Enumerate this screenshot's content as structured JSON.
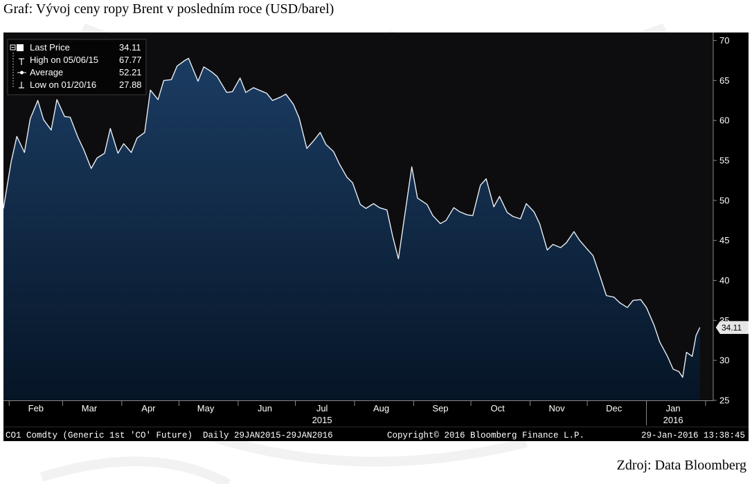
{
  "title": "Graf: Vývoj ceny ropy Brent v posledním roce (USD/barel)",
  "source": "Zdroj: Data Bloomberg",
  "chart_data": {
    "type": "area",
    "title": "",
    "xlabel": "",
    "ylabel": "",
    "ylim": [
      25,
      71
    ],
    "yticks": [
      25,
      30,
      35,
      40,
      45,
      50,
      55,
      60,
      65,
      70
    ],
    "grid": false,
    "month_labels": [
      {
        "label": "Feb",
        "date": "2015-02-15"
      },
      {
        "label": "Mar",
        "date": "2015-03-15"
      },
      {
        "label": "Apr",
        "date": "2015-04-15"
      },
      {
        "label": "May",
        "date": "2015-05-15"
      },
      {
        "label": "Jun",
        "date": "2015-06-15"
      },
      {
        "label": "Jul",
        "date": "2015-07-15"
      },
      {
        "label": "Aug",
        "date": "2015-08-15"
      },
      {
        "label": "Sep",
        "date": "2015-09-15"
      },
      {
        "label": "Oct",
        "date": "2015-10-15"
      },
      {
        "label": "Nov",
        "date": "2015-11-15"
      },
      {
        "label": "Dec",
        "date": "2015-12-15"
      },
      {
        "label": "Jan",
        "date": "2016-01-15"
      }
    ],
    "year_labels": [
      {
        "label": "2015",
        "date": "2015-07-15"
      },
      {
        "label": "2016",
        "date": "2016-01-15"
      }
    ],
    "legend": {
      "placement": "top-left",
      "items": [
        {
          "label": "Last Price",
          "value": "34.11",
          "marker": "square"
        },
        {
          "label": "High on 05/06/15",
          "value": "67.77",
          "marker": "high"
        },
        {
          "label": "Average",
          "value": "52.21",
          "marker": "average"
        },
        {
          "label": "Low on 01/20/16",
          "value": "27.88",
          "marker": "low"
        }
      ]
    },
    "last_value_label": "34.11",
    "footer_left": "CO1 Comdty (Generic 1st 'CO' Future)  Daily 29JAN2015-29JAN2016",
    "footer_center": "Copyright© 2016 Bloomberg Finance L.P.",
    "footer_right": "29-Jan-2016 13:38:45",
    "series": [
      {
        "x": [
          "2015-01-29",
          "2015-02-02",
          "2015-02-05",
          "2015-02-09",
          "2015-02-12",
          "2015-02-16",
          "2015-02-19",
          "2015-02-23",
          "2015-02-26",
          "2015-03-02",
          "2015-03-05",
          "2015-03-09",
          "2015-03-12",
          "2015-03-16",
          "2015-03-19",
          "2015-03-23",
          "2015-03-26",
          "2015-03-30",
          "2015-04-02",
          "2015-04-06",
          "2015-04-09",
          "2015-04-13",
          "2015-04-16",
          "2015-04-20",
          "2015-04-23",
          "2015-04-27",
          "2015-04-30",
          "2015-05-04",
          "2015-05-06",
          "2015-05-11",
          "2015-05-14",
          "2015-05-18",
          "2015-05-21",
          "2015-05-26",
          "2015-05-29",
          "2015-06-02",
          "2015-06-05",
          "2015-06-09",
          "2015-06-12",
          "2015-06-16",
          "2015-06-19",
          "2015-06-23",
          "2015-06-26",
          "2015-06-30",
          "2015-07-03",
          "2015-07-07",
          "2015-07-10",
          "2015-07-14",
          "2015-07-17",
          "2015-07-21",
          "2015-07-24",
          "2015-07-28",
          "2015-07-31",
          "2015-08-04",
          "2015-08-07",
          "2015-08-11",
          "2015-08-14",
          "2015-08-18",
          "2015-08-21",
          "2015-08-24",
          "2015-08-27",
          "2015-08-31",
          "2015-09-03",
          "2015-09-08",
          "2015-09-11",
          "2015-09-15",
          "2015-09-18",
          "2015-09-22",
          "2015-09-25",
          "2015-09-29",
          "2015-10-02",
          "2015-10-06",
          "2015-10-09",
          "2015-10-13",
          "2015-10-16",
          "2015-10-20",
          "2015-10-23",
          "2015-10-27",
          "2015-10-30",
          "2015-11-03",
          "2015-11-06",
          "2015-11-10",
          "2015-11-13",
          "2015-11-17",
          "2015-11-20",
          "2015-11-24",
          "2015-11-27",
          "2015-12-01",
          "2015-12-04",
          "2015-12-08",
          "2015-12-11",
          "2015-12-15",
          "2015-12-18",
          "2015-12-22",
          "2015-12-25",
          "2015-12-29",
          "2016-01-01",
          "2016-01-05",
          "2016-01-08",
          "2016-01-12",
          "2016-01-15",
          "2016-01-18",
          "2016-01-20",
          "2016-01-22",
          "2016-01-25",
          "2016-01-27",
          "2016-01-29"
        ],
        "values": [
          49.0,
          54.8,
          58.0,
          56.0,
          60.2,
          62.5,
          60.1,
          58.8,
          62.6,
          60.5,
          60.4,
          57.9,
          56.4,
          54.0,
          55.3,
          55.9,
          59.0,
          55.9,
          57.1,
          56.0,
          57.8,
          58.5,
          63.8,
          62.6,
          65.0,
          65.1,
          66.8,
          67.5,
          67.77,
          64.9,
          66.7,
          66.1,
          65.5,
          63.5,
          63.6,
          65.3,
          63.5,
          64.1,
          63.8,
          63.4,
          62.5,
          62.9,
          63.3,
          62.0,
          60.3,
          56.5,
          57.3,
          58.5,
          57.0,
          56.1,
          54.6,
          52.9,
          52.2,
          49.5,
          49.0,
          49.6,
          49.1,
          48.8,
          45.5,
          42.7,
          47.6,
          54.2,
          50.3,
          49.5,
          48.1,
          47.1,
          47.5,
          49.1,
          48.6,
          48.2,
          48.1,
          51.9,
          52.7,
          49.2,
          50.5,
          48.5,
          48.0,
          47.7,
          49.6,
          48.6,
          47.1,
          43.8,
          44.5,
          44.1,
          44.7,
          46.1,
          45.0,
          43.9,
          43.1,
          40.3,
          38.1,
          37.9,
          37.2,
          36.6,
          37.5,
          37.6,
          36.6,
          34.4,
          32.3,
          30.5,
          28.9,
          28.6,
          27.88,
          31.0,
          30.5,
          33.1,
          34.11
        ]
      }
    ]
  }
}
